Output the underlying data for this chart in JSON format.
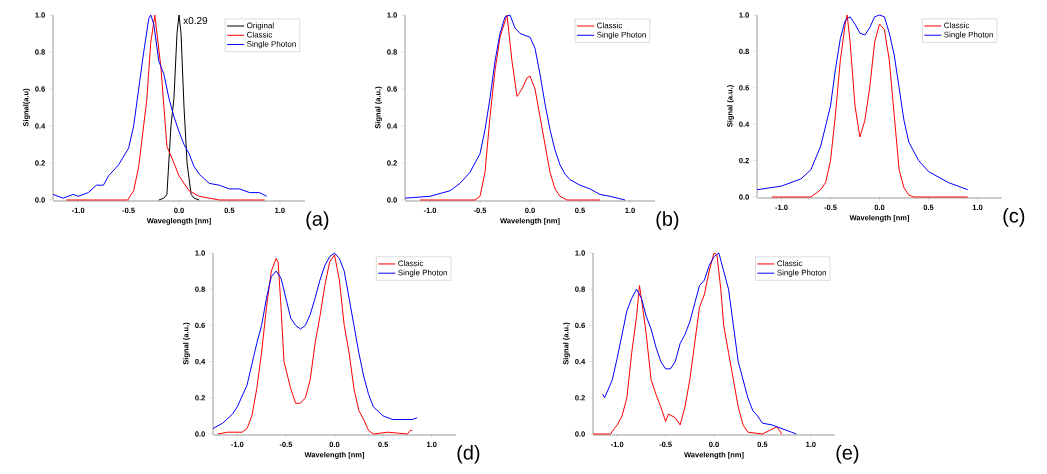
{
  "chart_data": [
    {
      "type": "line",
      "xlabel": "Waveglength [nm]",
      "ylabel": "Signal(a.u)",
      "xlim": [
        -1.25,
        1.25
      ],
      "ylim": [
        0,
        1
      ],
      "xticks": [
        {
          "value": -1,
          "label": "-1.0"
        },
        {
          "value": -0.5,
          "label": "-0.5"
        },
        {
          "value": 0,
          "label": "0.0"
        },
        {
          "value": 0.5,
          "label": "0.5"
        },
        {
          "value": 1,
          "label": "1.0"
        }
      ],
      "yticks": [
        {
          "value": 0,
          "label": "0.0"
        },
        {
          "value": 0.2,
          "label": "0.2"
        },
        {
          "value": 0.4,
          "label": "0.4"
        },
        {
          "value": 0.6,
          "label": "0.6"
        },
        {
          "value": 0.8,
          "label": "0.8"
        },
        {
          "value": 1,
          "label": "1.0"
        }
      ],
      "legend": "top right",
      "series": [
        {
          "name": "Original",
          "color": "#000000",
          "x": [
            -0.2,
            -0.15,
            -0.12,
            -0.08,
            -0.05,
            -0.02,
            0,
            0.02,
            0.05,
            0.08,
            0.12,
            0.15,
            0.2
          ],
          "values": [
            0,
            0.01,
            0.03,
            0.4,
            0.55,
            0.9,
            1.0,
            0.9,
            0.5,
            0.2,
            0.03,
            0.01,
            0
          ]
        },
        {
          "name": "Classic",
          "color": "#ff0000",
          "x": [
            -1.12,
            -0.8,
            -0.51,
            -0.45,
            -0.4,
            -0.32,
            -0.28,
            -0.24,
            -0.18,
            -0.12,
            -0.05,
            0.0,
            0.1,
            0.2,
            0.3,
            0.4,
            0.85
          ],
          "values": [
            0,
            0,
            0,
            0.05,
            0.18,
            0.54,
            0.85,
            1.0,
            0.72,
            0.29,
            0.2,
            0.13,
            0.05,
            0.02,
            0.01,
            0,
            0
          ]
        },
        {
          "name": "Single Photon",
          "color": "#0000ff",
          "x": [
            -1.25,
            -1.15,
            -1.05,
            -1.0,
            -0.9,
            -0.82,
            -0.75,
            -0.7,
            -0.6,
            -0.5,
            -0.45,
            -0.4,
            -0.35,
            -0.3,
            -0.28,
            -0.25,
            -0.2,
            -0.15,
            -0.1,
            -0.05,
            0.0,
            0.05,
            0.1,
            0.15,
            0.2,
            0.3,
            0.4,
            0.5,
            0.6,
            0.7,
            0.8,
            0.87
          ],
          "values": [
            0.03,
            0.01,
            0.03,
            0.02,
            0.04,
            0.08,
            0.08,
            0.13,
            0.19,
            0.28,
            0.4,
            0.6,
            0.8,
            0.98,
            1.0,
            0.95,
            0.75,
            0.68,
            0.55,
            0.45,
            0.37,
            0.3,
            0.25,
            0.18,
            0.14,
            0.09,
            0.08,
            0.06,
            0.06,
            0.04,
            0.04,
            0.02
          ]
        }
      ],
      "annotations": [
        {
          "text": "x0.29",
          "x": 0.03,
          "y": 0.97
        },
        "(a)"
      ]
    },
    {
      "type": "line",
      "xlabel": "Wavelength [nm]",
      "ylabel": "Signal (a.u.)",
      "xlim": [
        -1.25,
        1.25
      ],
      "ylim": [
        0,
        1
      ],
      "xticks": [
        {
          "value": -1,
          "label": "-1.0"
        },
        {
          "value": -0.5,
          "label": "-0.5"
        },
        {
          "value": 0,
          "label": "0.0"
        },
        {
          "value": 0.5,
          "label": "0.5"
        },
        {
          "value": 1,
          "label": "1.0"
        }
      ],
      "yticks": [
        {
          "value": 0,
          "label": "0.0"
        },
        {
          "value": 0.2,
          "label": "0.2"
        },
        {
          "value": 0.4,
          "label": "0.4"
        },
        {
          "value": 0.6,
          "label": "0.6"
        },
        {
          "value": 0.8,
          "label": "0.8"
        },
        {
          "value": 1,
          "label": "1.0"
        }
      ],
      "legend": "top right",
      "series": [
        {
          "name": "Classic",
          "color": "#ff0000",
          "x": [
            -1.1,
            -0.8,
            -0.55,
            -0.5,
            -0.45,
            -0.4,
            -0.35,
            -0.3,
            -0.23,
            -0.18,
            -0.13,
            -0.08,
            -0.03,
            0.0,
            0.05,
            0.1,
            0.15,
            0.2,
            0.25,
            0.3,
            0.37,
            0.7
          ],
          "values": [
            0,
            0,
            0,
            0.02,
            0.15,
            0.45,
            0.7,
            0.88,
            1.0,
            0.75,
            0.56,
            0.6,
            0.66,
            0.67,
            0.6,
            0.45,
            0.3,
            0.15,
            0.06,
            0.02,
            0,
            0
          ]
        },
        {
          "name": "Single Photon",
          "color": "#0000ff",
          "x": [
            -1.25,
            -1.0,
            -0.8,
            -0.7,
            -0.6,
            -0.5,
            -0.45,
            -0.4,
            -0.35,
            -0.3,
            -0.25,
            -0.2,
            -0.15,
            -0.1,
            -0.05,
            0.0,
            0.05,
            0.1,
            0.15,
            0.2,
            0.25,
            0.3,
            0.35,
            0.4,
            0.5,
            0.6,
            0.7,
            0.8,
            0.95
          ],
          "values": [
            0.01,
            0.02,
            0.05,
            0.09,
            0.15,
            0.25,
            0.38,
            0.55,
            0.75,
            0.9,
            0.99,
            1.0,
            0.93,
            0.9,
            0.89,
            0.88,
            0.82,
            0.68,
            0.52,
            0.38,
            0.27,
            0.19,
            0.14,
            0.11,
            0.08,
            0.06,
            0.03,
            0.02,
            0
          ]
        }
      ],
      "annotations": [
        "(b)"
      ]
    },
    {
      "type": "line",
      "xlabel": "Wavelength [nm]",
      "ylabel": "Signal (a.u.)",
      "xlim": [
        -1.25,
        1.25
      ],
      "ylim": [
        0,
        1
      ],
      "xticks": [
        {
          "value": -1,
          "label": "-1.0"
        },
        {
          "value": -0.5,
          "label": "-0.5"
        },
        {
          "value": 0,
          "label": "0.0"
        },
        {
          "value": 0.5,
          "label": "0.5"
        },
        {
          "value": 1,
          "label": "1.0"
        }
      ],
      "yticks": [
        {
          "value": 0,
          "label": "0.0"
        },
        {
          "value": 0.2,
          "label": "0.2"
        },
        {
          "value": 0.4,
          "label": "0.4"
        },
        {
          "value": 0.6,
          "label": "0.6"
        },
        {
          "value": 0.8,
          "label": "0.8"
        },
        {
          "value": 1,
          "label": "1.0"
        }
      ],
      "legend": "top right",
      "series": [
        {
          "name": "Classic",
          "color": "#ff0000",
          "x": [
            -1.1,
            -0.7,
            -0.6,
            -0.55,
            -0.5,
            -0.45,
            -0.4,
            -0.35,
            -0.33,
            -0.3,
            -0.25,
            -0.2,
            -0.15,
            -0.1,
            -0.05,
            0.0,
            0.05,
            0.1,
            0.15,
            0.2,
            0.25,
            0.3,
            0.35,
            0.9
          ],
          "values": [
            0,
            0,
            0.04,
            0.08,
            0.2,
            0.45,
            0.75,
            0.95,
            1.0,
            0.85,
            0.5,
            0.33,
            0.42,
            0.6,
            0.85,
            0.95,
            0.92,
            0.75,
            0.45,
            0.15,
            0.05,
            0.01,
            0,
            0
          ]
        },
        {
          "name": "Single Photon",
          "color": "#0000ff",
          "x": [
            -1.25,
            -1.0,
            -0.8,
            -0.7,
            -0.6,
            -0.5,
            -0.45,
            -0.4,
            -0.35,
            -0.3,
            -0.25,
            -0.2,
            -0.15,
            -0.1,
            -0.05,
            0.0,
            0.05,
            0.1,
            0.15,
            0.2,
            0.25,
            0.3,
            0.4,
            0.5,
            0.6,
            0.7,
            0.8,
            0.9
          ],
          "values": [
            0.04,
            0.06,
            0.1,
            0.15,
            0.28,
            0.5,
            0.7,
            0.87,
            0.97,
            0.99,
            0.95,
            0.9,
            0.89,
            0.93,
            0.99,
            1.0,
            0.99,
            0.9,
            0.78,
            0.6,
            0.42,
            0.3,
            0.2,
            0.14,
            0.11,
            0.08,
            0.06,
            0.04
          ]
        }
      ],
      "annotations": [
        "(c)"
      ]
    },
    {
      "type": "line",
      "xlabel": "Wavelength [nm]",
      "ylabel": "Signal (a.u.)",
      "xlim": [
        -1.25,
        1.25
      ],
      "ylim": [
        0,
        1
      ],
      "xticks": [
        {
          "value": -1,
          "label": "-1.0"
        },
        {
          "value": -0.5,
          "label": "-0.5"
        },
        {
          "value": 0,
          "label": "0.0"
        },
        {
          "value": 0.5,
          "label": "0.5"
        },
        {
          "value": 1,
          "label": "1.0"
        }
      ],
      "yticks": [
        {
          "value": 0,
          "label": "0.0"
        },
        {
          "value": 0.2,
          "label": "0.2"
        },
        {
          "value": 0.4,
          "label": "0.4"
        },
        {
          "value": 0.6,
          "label": "0.6"
        },
        {
          "value": 0.8,
          "label": "0.8"
        },
        {
          "value": 1,
          "label": "1.0"
        }
      ],
      "legend": "top right",
      "series": [
        {
          "name": "Classic",
          "color": "#ff0000",
          "x": [
            -1.2,
            -1.1,
            -1.0,
            -0.95,
            -0.9,
            -0.85,
            -0.8,
            -0.75,
            -0.7,
            -0.65,
            -0.6,
            -0.58,
            -0.55,
            -0.52,
            -0.45,
            -0.4,
            -0.35,
            -0.3,
            -0.25,
            -0.2,
            -0.15,
            -0.1,
            -0.05,
            0.0,
            0.05,
            0.1,
            0.15,
            0.2,
            0.25,
            0.3,
            0.35,
            0.4,
            0.55,
            0.75,
            0.78,
            0.8
          ],
          "values": [
            0,
            0.01,
            0.01,
            0.01,
            0.03,
            0.1,
            0.25,
            0.45,
            0.7,
            0.9,
            0.97,
            0.95,
            0.7,
            0.4,
            0.25,
            0.17,
            0.17,
            0.2,
            0.3,
            0.5,
            0.65,
            0.82,
            0.95,
            0.99,
            0.85,
            0.6,
            0.45,
            0.25,
            0.13,
            0.08,
            0.02,
            0,
            0.01,
            0,
            0.02,
            0.02
          ]
        },
        {
          "name": "Single Photon",
          "color": "#0000ff",
          "x": [
            -1.25,
            -1.15,
            -1.05,
            -1.0,
            -0.9,
            -0.8,
            -0.75,
            -0.7,
            -0.65,
            -0.6,
            -0.55,
            -0.5,
            -0.45,
            -0.4,
            -0.35,
            -0.3,
            -0.25,
            -0.2,
            -0.15,
            -0.1,
            -0.05,
            0.0,
            0.05,
            0.1,
            0.15,
            0.2,
            0.25,
            0.3,
            0.35,
            0.4,
            0.5,
            0.6,
            0.7,
            0.8,
            0.85
          ],
          "values": [
            0.03,
            0.06,
            0.11,
            0.15,
            0.27,
            0.5,
            0.6,
            0.75,
            0.87,
            0.9,
            0.86,
            0.75,
            0.64,
            0.6,
            0.58,
            0.6,
            0.66,
            0.75,
            0.85,
            0.93,
            0.98,
            1.0,
            0.97,
            0.9,
            0.75,
            0.6,
            0.45,
            0.32,
            0.22,
            0.15,
            0.1,
            0.08,
            0.08,
            0.08,
            0.09
          ]
        }
      ],
      "annotations": [
        "(d)"
      ]
    },
    {
      "type": "line",
      "xlabel": "Wavelength [nm]",
      "ylabel": "Signal (a.u.)",
      "xlim": [
        -1.25,
        1.25
      ],
      "ylim": [
        0,
        1
      ],
      "xticks": [
        {
          "value": -1,
          "label": "-1.0"
        },
        {
          "value": -0.5,
          "label": "-0.5"
        },
        {
          "value": 0,
          "label": "0.0"
        },
        {
          "value": 0.5,
          "label": "0.5"
        },
        {
          "value": 1,
          "label": "1.0"
        }
      ],
      "yticks": [
        {
          "value": 0,
          "label": "0.0"
        },
        {
          "value": 0.2,
          "label": "0.2"
        },
        {
          "value": 0.4,
          "label": "0.4"
        },
        {
          "value": 0.6,
          "label": "0.6"
        },
        {
          "value": 0.8,
          "label": "0.8"
        },
        {
          "value": 1,
          "label": "1.0"
        }
      ],
      "legend": "top right",
      "series": [
        {
          "name": "Classic",
          "color": "#ff0000",
          "x": [
            -1.25,
            -1.07,
            -1.03,
            -1.0,
            -0.95,
            -0.9,
            -0.85,
            -0.8,
            -0.77,
            -0.75,
            -0.7,
            -0.65,
            -0.6,
            -0.55,
            -0.5,
            -0.47,
            -0.4,
            -0.35,
            -0.3,
            -0.25,
            -0.2,
            -0.15,
            -0.1,
            -0.05,
            0.0,
            0.03,
            0.07,
            0.1,
            0.15,
            0.2,
            0.25,
            0.3,
            0.35,
            0.5,
            0.65,
            0.7
          ],
          "values": [
            0,
            0,
            0.03,
            0.05,
            0.1,
            0.2,
            0.45,
            0.65,
            0.82,
            0.75,
            0.55,
            0.3,
            0.22,
            0.15,
            0.07,
            0.11,
            0.09,
            0.05,
            0.15,
            0.3,
            0.5,
            0.7,
            0.77,
            0.9,
            1.0,
            0.99,
            0.8,
            0.6,
            0.45,
            0.3,
            0.15,
            0.05,
            0.01,
            0,
            0.04,
            0
          ]
        },
        {
          "name": "Single Photon",
          "color": "#0000ff",
          "x": [
            -1.15,
            -1.13,
            -1.05,
            -1.0,
            -0.95,
            -0.9,
            -0.85,
            -0.8,
            -0.75,
            -0.7,
            -0.65,
            -0.6,
            -0.55,
            -0.5,
            -0.45,
            -0.4,
            -0.35,
            -0.3,
            -0.25,
            -0.2,
            -0.15,
            -0.1,
            -0.05,
            0.0,
            0.05,
            0.1,
            0.15,
            0.2,
            0.25,
            0.3,
            0.35,
            0.4,
            0.45,
            0.5,
            0.6,
            0.7,
            0.8,
            0.85
          ],
          "values": [
            0.22,
            0.2,
            0.3,
            0.42,
            0.55,
            0.68,
            0.75,
            0.8,
            0.75,
            0.65,
            0.58,
            0.48,
            0.4,
            0.36,
            0.36,
            0.4,
            0.5,
            0.55,
            0.62,
            0.72,
            0.82,
            0.85,
            0.93,
            0.98,
            1.0,
            0.9,
            0.8,
            0.6,
            0.4,
            0.3,
            0.2,
            0.13,
            0.1,
            0.06,
            0.05,
            0.03,
            0.01,
            0
          ]
        }
      ],
      "annotations": [
        "(e)"
      ]
    }
  ]
}
